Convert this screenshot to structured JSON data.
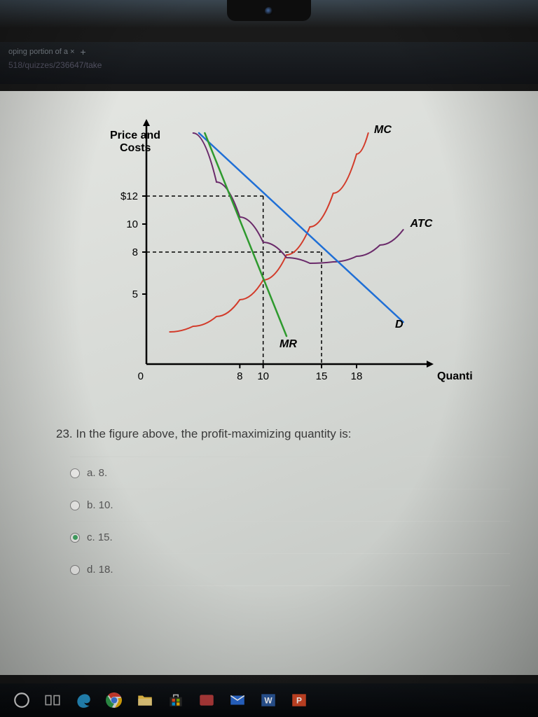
{
  "browser": {
    "tab_fragment": "oping portion of a  ×",
    "plus": "+",
    "url_fragment": "518/quizzes/236647/take"
  },
  "chart": {
    "type": "economics-cost-curves",
    "y_axis_title_line1": "Price and",
    "y_axis_title_line2": "Costs",
    "x_axis_title": "Quantity",
    "y_ticks": [
      {
        "label": "$12",
        "value": 12
      },
      {
        "label": "10",
        "value": 10
      },
      {
        "label": "8",
        "value": 8
      },
      {
        "label": "5",
        "value": 5
      }
    ],
    "x_origin_label": "0",
    "x_ticks": [
      {
        "label": "8",
        "value": 8
      },
      {
        "label": "10",
        "value": 10
      },
      {
        "label": "15",
        "value": 15
      },
      {
        "label": "18",
        "value": 18
      }
    ],
    "xlim": [
      0,
      24
    ],
    "ylim": [
      0,
      17
    ],
    "axis_color": "#000000",
    "axis_width": 2.5,
    "dash_color": "#000000",
    "dash_pattern": "5,4",
    "background": "transparent",
    "curves": {
      "MC": {
        "label": "MC",
        "color": "#d23b2a",
        "width": 2,
        "points": [
          [
            2,
            2.3
          ],
          [
            4,
            2.7
          ],
          [
            6,
            3.4
          ],
          [
            8,
            4.6
          ],
          [
            10,
            6.0
          ],
          [
            12,
            7.8
          ],
          [
            14,
            9.8
          ],
          [
            16,
            12.2
          ],
          [
            18,
            15.0
          ],
          [
            19,
            16.5
          ]
        ]
      },
      "ATC": {
        "label": "ATC",
        "color": "#6a2a6a",
        "width": 2,
        "points": [
          [
            4,
            16.5
          ],
          [
            6,
            13.0
          ],
          [
            8,
            10.5
          ],
          [
            10,
            8.7
          ],
          [
            12,
            7.6
          ],
          [
            14,
            7.2
          ],
          [
            16,
            7.3
          ],
          [
            18,
            7.7
          ],
          [
            20,
            8.5
          ],
          [
            22,
            9.6
          ]
        ]
      },
      "D": {
        "label": "D",
        "color": "#1f6fd6",
        "width": 2.5,
        "points": [
          [
            4.5,
            16.5
          ],
          [
            22,
            3
          ]
        ]
      },
      "MR": {
        "label": "MR",
        "color": "#2e9a2e",
        "width": 2.5,
        "points": [
          [
            5,
            16.5
          ],
          [
            12,
            2
          ]
        ]
      }
    },
    "dashed_guides": [
      {
        "from": [
          0,
          12
        ],
        "to": [
          10,
          12
        ]
      },
      {
        "from": [
          10,
          12
        ],
        "to": [
          10,
          0
        ]
      },
      {
        "from": [
          0,
          8
        ],
        "to": [
          15,
          8
        ]
      },
      {
        "from": [
          15,
          8
        ],
        "to": [
          15,
          0
        ]
      }
    ],
    "curve_labels": [
      {
        "text": "MC",
        "at": [
          19.5,
          16.5
        ],
        "italic": true
      },
      {
        "text": "ATC",
        "at": [
          22.6,
          9.8
        ],
        "italic": true
      },
      {
        "text": "D",
        "at": [
          21.3,
          2.6
        ],
        "italic": true
      },
      {
        "text": "MR",
        "at": [
          11.4,
          1.2
        ],
        "italic": true
      }
    ],
    "title_fontsize": 16,
    "tick_fontsize": 15,
    "label_font": "Arial"
  },
  "question": {
    "number": "23.",
    "text": "In the figure above, the profit-maximizing quantity is:"
  },
  "options": [
    {
      "key": "a",
      "label": "a. 8.",
      "selected": false
    },
    {
      "key": "b",
      "label": "b. 10.",
      "selected": false
    },
    {
      "key": "c",
      "label": "c. 15.",
      "selected": true
    },
    {
      "key": "d",
      "label": "d. 18.",
      "selected": false
    }
  ],
  "taskbar": {
    "icons": [
      "cortana-circle",
      "task-view",
      "edge",
      "chrome",
      "file-explorer",
      "ms-store",
      "photos",
      "mail",
      "word",
      "powerpoint"
    ]
  }
}
